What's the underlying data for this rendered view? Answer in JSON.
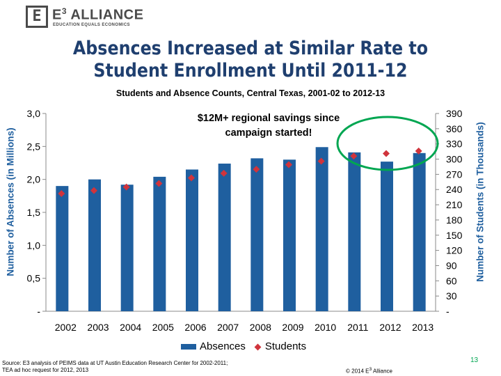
{
  "logo": {
    "mark": "E",
    "name": "E3 ALLIANCE",
    "name_prefix": "E",
    "name_sup": "3",
    "name_rest": " ALLIANCE",
    "tagline": "EDUCATION EQUALS ECONOMICS"
  },
  "colors": {
    "title": "#1f3f6f",
    "bar": "#1f5f9f",
    "marker": "#d0343c",
    "highlight_ellipse": "#00a651",
    "axis_label": "#1f5f9f"
  },
  "chart_data": {
    "type": "bar",
    "title": "Absences Increased at Similar Rate to Student Enrollment Until 2011-12",
    "subtitle": "Students and  Absence Counts, Central Texas, 2001-02 to 2012-13",
    "xlabel": "",
    "ylabel": "Number of Absences (in Millions)",
    "y2label": "Number of Students (in Thousands)",
    "categories": [
      "2002",
      "2003",
      "2004",
      "2005",
      "2006",
      "2007",
      "2008",
      "2009",
      "2010",
      "2011",
      "2012",
      "2013"
    ],
    "ylim": [
      0,
      3.0
    ],
    "yticks": [
      "-",
      "0,5",
      "1,0",
      "1,5",
      "2,0",
      "2,5",
      "3,0"
    ],
    "y2lim": [
      0,
      390
    ],
    "y2ticks": [
      "-",
      "30",
      "60",
      "90",
      "120",
      "150",
      "180",
      "210",
      "240",
      "270",
      "300",
      "330",
      "360",
      "390"
    ],
    "series": [
      {
        "name": "Absences",
        "type": "bar",
        "axis": "left",
        "values": [
          1.9,
          2.0,
          1.92,
          2.04,
          2.15,
          2.24,
          2.32,
          2.3,
          2.49,
          2.41,
          2.27,
          2.4
        ]
      },
      {
        "name": "Students",
        "type": "scatter",
        "axis": "right",
        "values": [
          232,
          238,
          245,
          252,
          263,
          272,
          280,
          289,
          296,
          306,
          311,
          316
        ]
      }
    ],
    "grid": false,
    "legend_position": "bottom",
    "annotation": "$12M+ regional savings since campaign started!"
  },
  "source": {
    "line1": "Source: E3 analysis of PEIMS data at UT Austin Education Research Center for 2002-2011;",
    "line2": "TEA ad hoc request for 2012, 2013"
  },
  "copyright": {
    "prefix": "© 2014 E",
    "sup": "3",
    "suffix": " Alliance"
  },
  "page_number": "13"
}
